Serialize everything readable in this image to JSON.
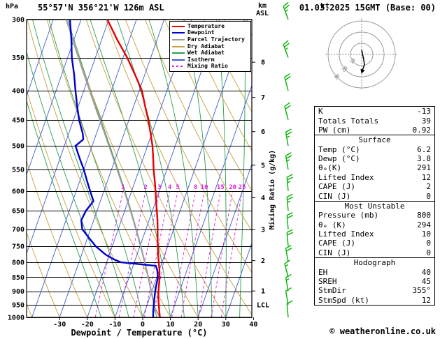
{
  "header": {
    "station": "55°57'N 356°21'W 126m ASL",
    "datetime": "01.03.2025 15GMT (Base: 00)"
  },
  "footer": {
    "copyright": "© weatheronline.co.uk"
  },
  "axes": {
    "pressure_unit": "hPa",
    "pressure_ticks": [
      300,
      350,
      400,
      450,
      500,
      550,
      600,
      650,
      700,
      750,
      800,
      850,
      900,
      950,
      1000
    ],
    "km_unit_line1": "km",
    "km_unit_line2": "ASL",
    "km_levels": [
      {
        "km": "8",
        "p": 356.5
      },
      {
        "km": "7",
        "p": 411.0
      },
      {
        "km": "6",
        "p": 472.0
      },
      {
        "km": "5",
        "p": 540.5
      },
      {
        "km": "4",
        "p": 616.6
      },
      {
        "km": "3",
        "p": 701.2
      },
      {
        "km": "2",
        "p": 795.0
      },
      {
        "km": "1",
        "p": 898.8
      }
    ],
    "lcl_label": "LCL",
    "lcl_pressure": 950,
    "x_label": "Dewpoint / Temperature (°C)",
    "x_ticks": [
      -30,
      -20,
      -10,
      0,
      10,
      20,
      30,
      40
    ],
    "mixing_ratio_label": "Mixing Ratio (g/kg)"
  },
  "legend": [
    {
      "key": "temperature",
      "label": "Temperature",
      "color": "#e60000"
    },
    {
      "key": "dewpoint",
      "label": "Dewpoint",
      "color": "#0000cd"
    },
    {
      "key": "parcel",
      "label": "Parcel Trajectory",
      "color": "#9c9c9c"
    },
    {
      "key": "dry_adiabat",
      "label": "Dry Adiabat",
      "color": "#c8a040"
    },
    {
      "key": "wet_adiabat",
      "label": "Wet Adiabat",
      "color": "#27a04a"
    },
    {
      "key": "isotherm",
      "label": "Isotherm",
      "color": "#3c5bd2"
    },
    {
      "key": "mixing_ratio",
      "label": "Mixing Ratio",
      "color": "#dd22dd",
      "dashed": true
    }
  ],
  "colors": {
    "wind_barb": "#00b400",
    "grid": "#000000"
  },
  "hodograph": {
    "unit": "kt",
    "rings_kt": [
      10,
      20,
      30
    ],
    "ring_labels": [
      "10",
      "20",
      "30"
    ]
  },
  "stats": {
    "rows": [
      {
        "label": "K",
        "value": "-13"
      },
      {
        "label": "Totals Totals",
        "value": "39"
      },
      {
        "label": "PW (cm)",
        "value": "0.92"
      },
      {
        "header": "Surface"
      },
      {
        "label": "Temp (°C)",
        "value": "6.2"
      },
      {
        "label": "Dewp (°C)",
        "value": "3.8"
      },
      {
        "label": "θₑ(K)",
        "value": "291"
      },
      {
        "label": "Lifted Index",
        "value": "12"
      },
      {
        "label": "CAPE (J)",
        "value": "2"
      },
      {
        "label": "CIN (J)",
        "value": "0"
      },
      {
        "header": "Most Unstable"
      },
      {
        "label": "Pressure (mb)",
        "value": "800"
      },
      {
        "label": "θₑ (K)",
        "value": "294"
      },
      {
        "label": "Lifted Index",
        "value": "10"
      },
      {
        "label": "CAPE (J)",
        "value": "0"
      },
      {
        "label": "CIN (J)",
        "value": "0"
      },
      {
        "header": "Hodograph"
      },
      {
        "label": "EH",
        "value": "40"
      },
      {
        "label": "SREH",
        "value": "45"
      },
      {
        "label": "StmDir",
        "value": "355°"
      },
      {
        "label": "StmSpd (kt)",
        "value": "12"
      }
    ]
  },
  "chart_data": {
    "type": "line",
    "subtype": "skewt_log_p",
    "title": "55°57'N 356°21'W 126m ASL",
    "pressure_range_hPa": [
      300,
      1000
    ],
    "temp_axis_ticks_C": [
      -30,
      -20,
      -10,
      0,
      10,
      20,
      30,
      40
    ],
    "isotherms_C": {
      "start": -80,
      "end": 40,
      "step": 10
    },
    "dry_adiabats_C": {
      "start": -40,
      "end": 120,
      "step": 10
    },
    "wet_adiabats_start_C": [
      -15,
      -10,
      -5,
      0,
      5,
      10,
      15,
      20,
      25,
      30,
      35,
      40
    ],
    "mixing_ratio_g_kg": [
      1,
      2,
      3,
      4,
      5,
      8,
      10,
      15,
      20,
      25
    ],
    "temperature_profile": [
      [
        1000,
        6.2
      ],
      [
        975,
        5.2
      ],
      [
        950,
        4.2
      ],
      [
        925,
        3.2
      ],
      [
        900,
        2.4
      ],
      [
        875,
        1.7
      ],
      [
        850,
        1.0
      ],
      [
        825,
        0.0
      ],
      [
        800,
        -1.2
      ],
      [
        775,
        -2.4
      ],
      [
        750,
        -3.6
      ],
      [
        725,
        -4.7
      ],
      [
        700,
        -5.8
      ],
      [
        675,
        -7.0
      ],
      [
        650,
        -8.4
      ],
      [
        625,
        -9.9
      ],
      [
        600,
        -11.4
      ],
      [
        575,
        -13.0
      ],
      [
        550,
        -14.8
      ],
      [
        525,
        -16.4
      ],
      [
        500,
        -18.2
      ],
      [
        475,
        -20.5
      ],
      [
        450,
        -23.0
      ],
      [
        425,
        -26.0
      ],
      [
        400,
        -29.0
      ],
      [
        375,
        -33.5
      ],
      [
        350,
        -38.5
      ],
      [
        325,
        -44.5
      ],
      [
        300,
        -50.5
      ]
    ],
    "dewpoint_profile": [
      [
        1000,
        3.8
      ],
      [
        975,
        3.0
      ],
      [
        950,
        2.4
      ],
      [
        925,
        1.8
      ],
      [
        900,
        1.2
      ],
      [
        875,
        0.8
      ],
      [
        850,
        0.4
      ],
      [
        825,
        -0.8
      ],
      [
        812,
        -1.8
      ],
      [
        800,
        -15.0
      ],
      [
        790,
        -18.0
      ],
      [
        775,
        -21.5
      ],
      [
        750,
        -26.0
      ],
      [
        725,
        -29.5
      ],
      [
        700,
        -33.0
      ],
      [
        675,
        -34.5
      ],
      [
        650,
        -34.0
      ],
      [
        625,
        -32.5
      ],
      [
        600,
        -35.0
      ],
      [
        575,
        -37.5
      ],
      [
        550,
        -40.0
      ],
      [
        525,
        -43.0
      ],
      [
        500,
        -46.0
      ],
      [
        487,
        -44.0
      ],
      [
        475,
        -45.0
      ],
      [
        450,
        -48.0
      ],
      [
        425,
        -50.5
      ],
      [
        400,
        -53.0
      ],
      [
        375,
        -55.5
      ],
      [
        350,
        -58.5
      ],
      [
        325,
        -61.0
      ],
      [
        300,
        -64.0
      ]
    ],
    "surface_parcel": {
      "pressure": 1000,
      "temp": 6.2,
      "dewp": 3.8
    },
    "wind_barbs": [
      {
        "p": 1000,
        "spd": 10,
        "dir": 355
      },
      {
        "p": 950,
        "spd": 10,
        "dir": 350
      },
      {
        "p": 900,
        "spd": 15,
        "dir": 350
      },
      {
        "p": 850,
        "spd": 15,
        "dir": 345
      },
      {
        "p": 800,
        "spd": 20,
        "dir": 350
      },
      {
        "p": 750,
        "spd": 20,
        "dir": 355
      },
      {
        "p": 700,
        "spd": 20,
        "dir": 355
      },
      {
        "p": 650,
        "spd": 25,
        "dir": 355
      },
      {
        "p": 600,
        "spd": 25,
        "dir": 355
      },
      {
        "p": 550,
        "spd": 25,
        "dir": 350
      },
      {
        "p": 500,
        "spd": 25,
        "dir": 350
      },
      {
        "p": 450,
        "spd": 20,
        "dir": 345
      },
      {
        "p": 400,
        "spd": 20,
        "dir": 345
      },
      {
        "p": 350,
        "spd": 25,
        "dir": 340
      },
      {
        "p": 300,
        "spd": 25,
        "dir": 340
      }
    ],
    "hodograph_trace_kt": [
      [
        0,
        4
      ],
      [
        1.5,
        -3
      ],
      [
        2.5,
        -9
      ],
      [
        0.5,
        -15
      ]
    ]
  }
}
